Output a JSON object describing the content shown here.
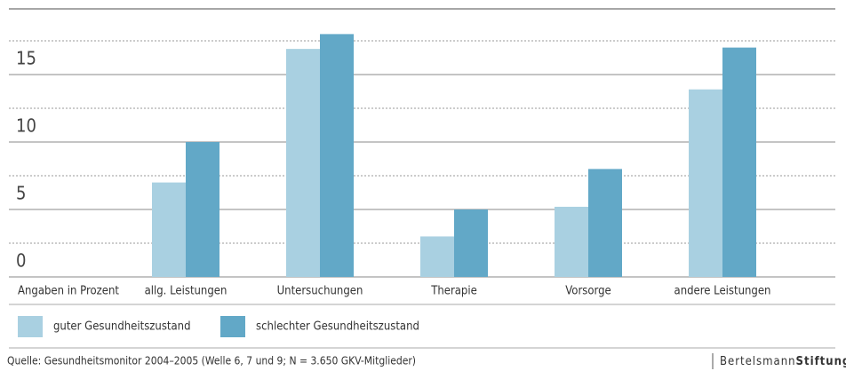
{
  "chart_data": {
    "type": "bar",
    "axis_note": "Angaben in Prozent",
    "categories": [
      "allg. Leistungen",
      "Untersuchungen",
      "Therapie",
      "Vorsorge",
      "andere Leistungen"
    ],
    "series": [
      {
        "name": "guter Gesundheitszustand",
        "color": "#a9d0e1",
        "values": [
          7.0,
          16.9,
          3.0,
          5.2,
          13.9
        ]
      },
      {
        "name": "schlechter Gesundheitszustand",
        "color": "#62a8c7",
        "values": [
          10.0,
          18.0,
          5.0,
          8.0,
          17.0
        ]
      }
    ],
    "ylim": [
      0,
      20
    ],
    "yticks": [
      0,
      5,
      10,
      15
    ],
    "minor_yticks": [
      2.5,
      7.5,
      12.5,
      17.5
    ],
    "grid": true,
    "source": "Quelle: Gesundheitsmonitor 2004–2005 (Welle 6, 7 und 9; N = 3.650 GKV-Mitglieder)",
    "brand": {
      "light": "Bertelsmann",
      "bold": "Stiftung"
    }
  }
}
